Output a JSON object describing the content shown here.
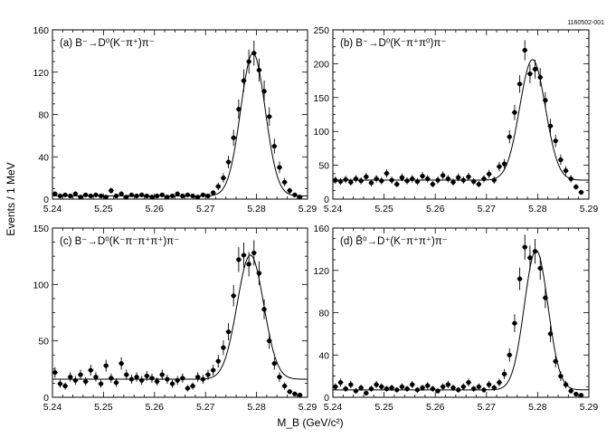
{
  "figure": {
    "id": "1160502-001",
    "ylabel": "Events / 1 MeV",
    "xlabel": "M_B (GeV/c²)",
    "x_ticks": [
      "5.24",
      "5.25",
      "5.26",
      "5.27",
      "5.28",
      "5.29"
    ]
  },
  "chart_data": [
    {
      "type": "scatter",
      "panel": "a",
      "title": "(a) B⁻→D⁰(K⁻π⁺)π⁻",
      "xlim": [
        5.24,
        5.29
      ],
      "ylim": [
        0,
        160
      ],
      "y_ticks": [
        0,
        40,
        80,
        120,
        160
      ],
      "fit_curve": {
        "mean": 5.2793,
        "sigma": 0.0024,
        "amplitude": 135,
        "background": 3
      },
      "series": [
        {
          "x": [
            5.2405,
            5.2415,
            5.2425,
            5.2435,
            5.2445,
            5.2455,
            5.2465,
            5.2475,
            5.2485,
            5.2495,
            5.2505,
            5.2515,
            5.2525,
            5.2535,
            5.2545,
            5.2555,
            5.2565,
            5.2575,
            5.2585,
            5.2595,
            5.2605,
            5.2615,
            5.2625,
            5.2635,
            5.2645,
            5.2655,
            5.2665,
            5.2675,
            5.2685,
            5.2695,
            5.2705,
            5.2715,
            5.2725,
            5.2735,
            5.2745,
            5.2755,
            5.2765,
            5.2775,
            5.2785,
            5.2795,
            5.2805,
            5.2815,
            5.2825,
            5.2835,
            5.2845,
            5.2855,
            5.2865,
            5.2875,
            5.2885
          ],
          "y": [
            5,
            3,
            4,
            3,
            5,
            2,
            4,
            3,
            4,
            3,
            2,
            8,
            3,
            5,
            2,
            4,
            3,
            4,
            3,
            2,
            3,
            4,
            2,
            3,
            5,
            3,
            4,
            3,
            2,
            4,
            3,
            6,
            12,
            20,
            35,
            58,
            85,
            112,
            130,
            138,
            122,
            102,
            78,
            50,
            30,
            16,
            8,
            4,
            2
          ],
          "err": [
            2.2,
            1.7,
            2,
            1.7,
            2.2,
            1.4,
            2,
            1.7,
            2,
            1.7,
            1.4,
            2.8,
            1.7,
            2.2,
            1.4,
            2,
            1.7,
            2,
            1.7,
            1.4,
            1.7,
            2,
            1.4,
            1.7,
            2.2,
            1.7,
            2,
            1.7,
            1.4,
            2,
            1.7,
            2.4,
            3.5,
            4.5,
            5.9,
            7.6,
            9.2,
            10.6,
            11.4,
            11.7,
            11,
            10.1,
            8.8,
            7.1,
            5.5,
            4,
            2.8,
            2,
            1.4
          ]
        }
      ]
    },
    {
      "type": "scatter",
      "panel": "b",
      "title": "(b) B⁻→D⁰(K⁻π⁺π⁰)π⁻",
      "xlim": [
        5.24,
        5.29
      ],
      "ylim": [
        0,
        250
      ],
      "y_ticks": [
        0,
        50,
        100,
        150,
        200,
        250
      ],
      "fit_curve": {
        "mean": 5.279,
        "sigma": 0.0025,
        "amplitude": 178,
        "background": 28
      },
      "series": [
        {
          "x": [
            5.2405,
            5.2415,
            5.2425,
            5.2435,
            5.2445,
            5.2455,
            5.2465,
            5.2475,
            5.2485,
            5.2495,
            5.2505,
            5.2515,
            5.2525,
            5.2535,
            5.2545,
            5.2555,
            5.2565,
            5.2575,
            5.2585,
            5.2595,
            5.2605,
            5.2615,
            5.2625,
            5.2635,
            5.2645,
            5.2655,
            5.2665,
            5.2675,
            5.2685,
            5.2695,
            5.2705,
            5.2715,
            5.2725,
            5.2735,
            5.2745,
            5.2755,
            5.2765,
            5.2775,
            5.2785,
            5.2795,
            5.2805,
            5.2815,
            5.2825,
            5.2835,
            5.2845,
            5.2855,
            5.2865,
            5.2875,
            5.2885
          ],
          "y": [
            28,
            26,
            29,
            25,
            30,
            27,
            33,
            24,
            30,
            27,
            38,
            28,
            22,
            32,
            27,
            30,
            26,
            34,
            30,
            22,
            28,
            35,
            30,
            25,
            32,
            28,
            33,
            26,
            22,
            30,
            37,
            28,
            48,
            52,
            92,
            128,
            170,
            220,
            185,
            192,
            180,
            146,
            108,
            86,
            58,
            42,
            30,
            18,
            10
          ],
          "err": [
            5.3,
            5.1,
            5.4,
            5,
            5.5,
            5.2,
            5.7,
            4.9,
            5.5,
            5.2,
            6.2,
            5.3,
            4.7,
            5.7,
            5.2,
            5.5,
            5.1,
            5.8,
            5.5,
            4.7,
            5.3,
            5.9,
            5.5,
            5,
            5.7,
            5.3,
            5.7,
            5.1,
            4.7,
            5.5,
            6.1,
            5.3,
            6.9,
            7.2,
            9.6,
            11.3,
            13,
            14.8,
            13.6,
            13.9,
            13.4,
            12.1,
            10.4,
            9.3,
            7.6,
            6.5,
            5.5,
            4.2,
            3.2
          ]
        }
      ]
    },
    {
      "type": "scatter",
      "panel": "c",
      "title": "(c) B⁻→D⁰(K⁻π⁻π⁺π⁺)π⁻",
      "xlim": [
        5.24,
        5.29
      ],
      "ylim": [
        0,
        150
      ],
      "y_ticks": [
        0,
        50,
        100,
        150
      ],
      "fit_curve": {
        "mean": 5.2788,
        "sigma": 0.0026,
        "amplitude": 110,
        "background": 16
      },
      "series": [
        {
          "x": [
            5.2405,
            5.2415,
            5.2425,
            5.2435,
            5.2445,
            5.2455,
            5.2465,
            5.2475,
            5.2485,
            5.2495,
            5.2505,
            5.2515,
            5.2525,
            5.2535,
            5.2545,
            5.2555,
            5.2565,
            5.2575,
            5.2585,
            5.2595,
            5.2605,
            5.2615,
            5.2625,
            5.2635,
            5.2645,
            5.2655,
            5.2665,
            5.2675,
            5.2685,
            5.2695,
            5.2705,
            5.2715,
            5.2725,
            5.2735,
            5.2745,
            5.2755,
            5.2765,
            5.2775,
            5.2785,
            5.2795,
            5.2805,
            5.2815,
            5.2825,
            5.2835,
            5.2845,
            5.2855,
            5.2865,
            5.2875,
            5.2885
          ],
          "y": [
            22,
            12,
            10,
            18,
            15,
            20,
            14,
            24,
            18,
            12,
            28,
            17,
            13,
            30,
            20,
            16,
            18,
            15,
            19,
            17,
            14,
            20,
            16,
            12,
            15,
            17,
            8,
            10,
            18,
            16,
            20,
            24,
            32,
            44,
            58,
            90,
            122,
            126,
            118,
            128,
            110,
            78,
            50,
            30,
            18,
            10,
            5,
            3,
            2
          ],
          "err": [
            4.7,
            3.5,
            3.2,
            4.2,
            3.9,
            4.5,
            3.7,
            4.9,
            4.2,
            3.5,
            5.3,
            4.1,
            3.6,
            5.5,
            4.5,
            4,
            4.2,
            3.9,
            4.4,
            4.1,
            3.7,
            4.5,
            4,
            3.5,
            3.9,
            4.1,
            2.8,
            3.2,
            4.2,
            4,
            4.5,
            4.9,
            5.7,
            6.6,
            7.6,
            9.5,
            11,
            11.2,
            10.9,
            11.3,
            10.5,
            8.8,
            7.1,
            5.5,
            4.2,
            3.2,
            2.2,
            1.7,
            1.4
          ]
        }
      ]
    },
    {
      "type": "scatter",
      "panel": "d",
      "title": "(d) B̄⁰→D⁺(K⁻π⁺π⁺)π⁻",
      "xlim": [
        5.24,
        5.29
      ],
      "ylim": [
        0,
        160
      ],
      "y_ticks": [
        0,
        40,
        80,
        120,
        160
      ],
      "fit_curve": {
        "mean": 5.2797,
        "sigma": 0.0023,
        "amplitude": 132,
        "background": 7
      },
      "series": [
        {
          "x": [
            5.2405,
            5.2415,
            5.2425,
            5.2435,
            5.2445,
            5.2455,
            5.2465,
            5.2475,
            5.2485,
            5.2495,
            5.2505,
            5.2515,
            5.2525,
            5.2535,
            5.2545,
            5.2555,
            5.2565,
            5.2575,
            5.2585,
            5.2595,
            5.2605,
            5.2615,
            5.2625,
            5.2635,
            5.2645,
            5.2655,
            5.2665,
            5.2675,
            5.2685,
            5.2695,
            5.2705,
            5.2715,
            5.2725,
            5.2735,
            5.2745,
            5.2755,
            5.2765,
            5.2775,
            5.2785,
            5.2795,
            5.2805,
            5.2815,
            5.2825,
            5.2835,
            5.2845,
            5.2855,
            5.2865,
            5.2875,
            5.2885
          ],
          "y": [
            10,
            14,
            8,
            12,
            6,
            9,
            4,
            8,
            12,
            10,
            8,
            9,
            7,
            10,
            8,
            12,
            7,
            9,
            11,
            8,
            6,
            10,
            12,
            9,
            7,
            10,
            14,
            8,
            10,
            7,
            12,
            9,
            14,
            22,
            40,
            70,
            112,
            142,
            132,
            138,
            122,
            94,
            60,
            34,
            20,
            12,
            6,
            3,
            2
          ],
          "err": [
            3.2,
            3.7,
            2.8,
            3.5,
            2.4,
            3,
            2,
            2.8,
            3.5,
            3.2,
            2.8,
            3,
            2.6,
            3.2,
            2.8,
            3.5,
            2.6,
            3,
            3.3,
            2.8,
            2.4,
            3.2,
            3.5,
            3,
            2.6,
            3.2,
            3.7,
            2.8,
            3.2,
            2.6,
            3.5,
            3,
            3.7,
            4.7,
            6.3,
            8.4,
            10.6,
            11.9,
            11.5,
            11.7,
            11,
            9.7,
            7.7,
            5.8,
            4.5,
            3.5,
            2.4,
            1.7,
            1.4
          ]
        }
      ]
    }
  ]
}
